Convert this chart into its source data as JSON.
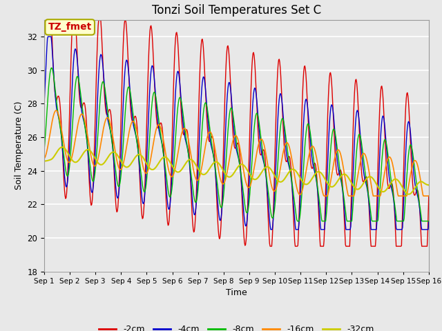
{
  "title": "Tonzi Soil Temperatures Set C",
  "xlabel": "Time",
  "ylabel": "Soil Temperature (C)",
  "ylim": [
    18,
    33
  ],
  "yticks": [
    18,
    20,
    22,
    24,
    26,
    28,
    30,
    32
  ],
  "annotation_text": "TZ_fmet",
  "annotation_color": "#cc0000",
  "annotation_bg": "#ffffcc",
  "annotation_border": "#aaaa00",
  "series_colors": [
    "#dd0000",
    "#0000cc",
    "#00bb00",
    "#ff8800",
    "#cccc00"
  ],
  "series_labels": [
    "-2cm",
    "-4cm",
    "-8cm",
    "-16cm",
    "-32cm"
  ],
  "plot_bg": "#e8e8e8",
  "fig_bg": "#e8e8e8",
  "grid_color": "#ffffff",
  "days": 15
}
